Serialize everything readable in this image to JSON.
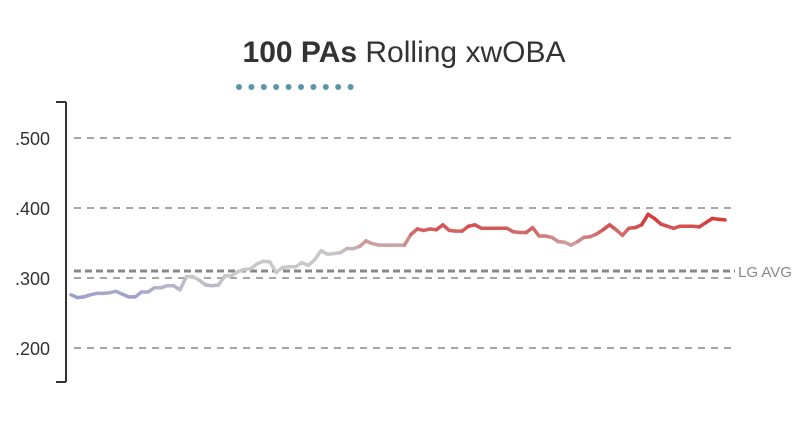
{
  "chart_data": {
    "type": "line",
    "title_bold": "100 PAs",
    "title_rest": "Rolling xwOBA",
    "xlabel": "",
    "ylabel": "",
    "ylim": [
      0.16,
      0.55
    ],
    "y_ticks": [
      {
        "value": 0.5,
        "label": ".500"
      },
      {
        "value": 0.4,
        "label": ".400"
      },
      {
        "value": 0.3,
        "label": ".300"
      },
      {
        "value": 0.2,
        "label": ".200"
      }
    ],
    "grid": true,
    "reference_line": {
      "label": "LG AVG",
      "value": 0.31
    },
    "colors": {
      "low": "#9999cc",
      "mid": "#c8c8c8",
      "high": "#d73c3c",
      "title_dots": "#5b97a8",
      "axis": "#333333",
      "grid": "#888888"
    },
    "values": [
      0.276,
      0.272,
      0.273,
      0.276,
      0.278,
      0.278,
      0.279,
      0.281,
      0.277,
      0.273,
      0.273,
      0.28,
      0.28,
      0.286,
      0.286,
      0.289,
      0.289,
      0.283,
      0.302,
      0.302,
      0.297,
      0.29,
      0.289,
      0.29,
      0.303,
      0.303,
      0.309,
      0.312,
      0.313,
      0.32,
      0.324,
      0.323,
      0.308,
      0.315,
      0.316,
      0.316,
      0.322,
      0.318,
      0.326,
      0.339,
      0.334,
      0.335,
      0.336,
      0.342,
      0.342,
      0.345,
      0.353,
      0.349,
      0.347,
      0.347,
      0.347,
      0.347,
      0.347,
      0.362,
      0.37,
      0.368,
      0.37,
      0.369,
      0.376,
      0.368,
      0.367,
      0.367,
      0.374,
      0.376,
      0.371,
      0.371,
      0.371,
      0.371,
      0.371,
      0.366,
      0.365,
      0.365,
      0.372,
      0.36,
      0.36,
      0.358,
      0.352,
      0.351,
      0.347,
      0.352,
      0.358,
      0.359,
      0.363,
      0.369,
      0.376,
      0.369,
      0.361,
      0.371,
      0.372,
      0.376,
      0.391,
      0.385,
      0.377,
      0.374,
      0.371,
      0.374,
      0.374,
      0.374,
      0.373,
      0.379,
      0.385,
      0.384,
      0.383
    ]
  }
}
